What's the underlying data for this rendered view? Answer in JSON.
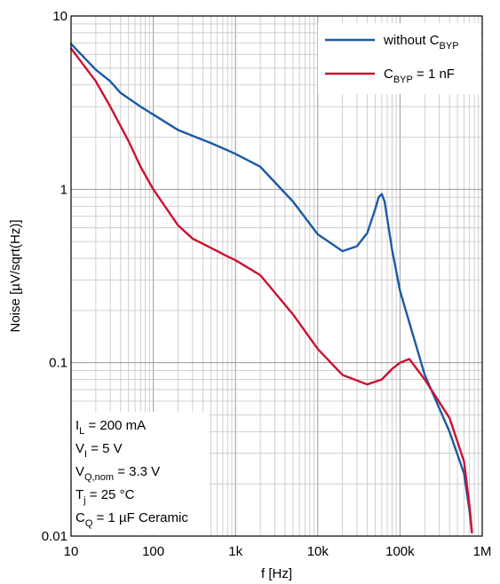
{
  "chart_data": {
    "type": "line",
    "xlabel": "f [Hz]",
    "ylabel": "Noise [µV/sqrt(Hz)]",
    "xscale": "log",
    "yscale": "log",
    "xlim": [
      10,
      1000000
    ],
    "ylim": [
      0.01,
      10
    ],
    "x_ticks": [
      "10",
      "100",
      "1k",
      "10k",
      "100k",
      "1M"
    ],
    "y_ticks": [
      "0.01",
      "0.1",
      "1",
      "10"
    ],
    "grid": true,
    "legend_position": "top-right",
    "series": [
      {
        "name": "without C_BYP",
        "name_main": "without C",
        "name_sub": "BYP",
        "name_suffix": "",
        "color": "#1a5aa6",
        "x": [
          10,
          20,
          30,
          40,
          70,
          100,
          200,
          500,
          800,
          1000,
          2000,
          5000,
          10000,
          20000,
          30000,
          40000,
          50000,
          55000,
          60000,
          65000,
          80000,
          100000,
          200000,
          400000,
          600000,
          700000,
          750000
        ],
        "y": [
          6.9,
          4.9,
          4.2,
          3.6,
          3.0,
          2.7,
          2.2,
          1.85,
          1.68,
          1.6,
          1.35,
          0.85,
          0.55,
          0.44,
          0.47,
          0.56,
          0.77,
          0.9,
          0.94,
          0.85,
          0.45,
          0.26,
          0.085,
          0.04,
          0.023,
          0.014,
          0.0105
        ]
      },
      {
        "name": "C_BYP = 1 nF",
        "name_main": "C",
        "name_sub": "BYP",
        "name_suffix": " = 1 nF",
        "color": "#cc1133",
        "x": [
          10,
          20,
          30,
          50,
          70,
          100,
          200,
          300,
          500,
          800,
          1000,
          2000,
          5000,
          10000,
          20000,
          40000,
          60000,
          80000,
          100000,
          130000,
          200000,
          400000,
          600000,
          700000,
          750000
        ],
        "y": [
          6.5,
          4.2,
          3.0,
          1.9,
          1.35,
          1.0,
          0.62,
          0.52,
          0.46,
          0.41,
          0.39,
          0.32,
          0.19,
          0.12,
          0.085,
          0.075,
          0.08,
          0.092,
          0.1,
          0.105,
          0.08,
          0.048,
          0.027,
          0.015,
          0.0105
        ]
      }
    ],
    "annotation": [
      {
        "main": "I",
        "sub": "L",
        "rest": " = 200 mA"
      },
      {
        "main": "V",
        "sub": "I",
        "rest": " = 5 V"
      },
      {
        "main": "V",
        "sub": "Q,nom",
        "rest": " = 3.3 V"
      },
      {
        "main": "T",
        "sub": "j",
        "rest": " = 25 °C"
      },
      {
        "main": "C",
        "sub": "Q",
        "rest": " = 1 µF Ceramic"
      }
    ]
  }
}
